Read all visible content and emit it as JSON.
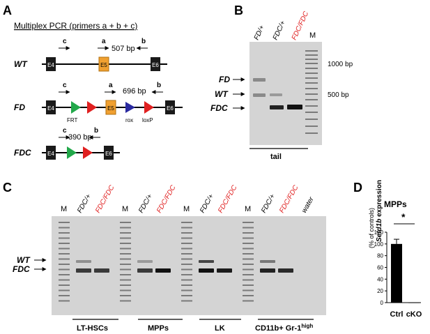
{
  "panel_a": {
    "label": "A",
    "title": "Multiplex PCR (primers a + b + c)",
    "rows": [
      {
        "name": "WT",
        "product": "507 bp"
      },
      {
        "name": "FD",
        "product": "696 bp"
      },
      {
        "name": "FDC",
        "product": "390 bp"
      }
    ],
    "primers": {
      "a": "a",
      "b": "b",
      "c": "c"
    },
    "exons": {
      "e4": "E4",
      "e5": "E5",
      "e6": "E6"
    },
    "sites": {
      "frt": "FRT",
      "rox": "rox",
      "loxp": "loxP"
    },
    "colors": {
      "exon": "#1a1a1a",
      "e5": "#f0a030",
      "frt": "#22a84a",
      "loxp": "#e02020",
      "rox": "#2a2aa0"
    }
  },
  "panel_b": {
    "label": "B",
    "lanes": [
      "FD/+",
      "FDC/+",
      "FDC/FDC",
      "M"
    ],
    "band_labels": [
      "FD",
      "WT",
      "FDC"
    ],
    "markers": [
      "1000 bp",
      "500 bp"
    ],
    "sample": "tail"
  },
  "panel_c": {
    "label": "C",
    "lanes": [
      "M",
      "FDC/+",
      "FDC/FDC",
      "M",
      "FDC/+",
      "FDC/FDC",
      "M",
      "FDC/+",
      "FDC/FDC",
      "M",
      "FDC/+",
      "FDC/FDC",
      "water"
    ],
    "band_labels": [
      "WT",
      "FDC"
    ],
    "groups": [
      "LT-HSCs",
      "MPPs",
      "LK",
      "CD11b+ Gr-1"
    ],
    "group_superscript": "high"
  },
  "panel_d": {
    "label": "D",
    "title": "MPPs",
    "ylabel_gene": "Setd1b",
    "ylabel_rest": " expression",
    "ylabel_sub": "(% of controls)",
    "significance": "*"
  },
  "chart_data": {
    "type": "bar",
    "title": "MPPs",
    "categories": [
      "Ctrl",
      "cKO"
    ],
    "values": [
      100,
      0.5
    ],
    "errors": [
      8,
      0
    ],
    "ylabel": "Setd1b expression (% of controls)",
    "ylim": [
      0,
      120
    ],
    "yticks": [
      0,
      20,
      40,
      60,
      80,
      100,
      120
    ]
  }
}
